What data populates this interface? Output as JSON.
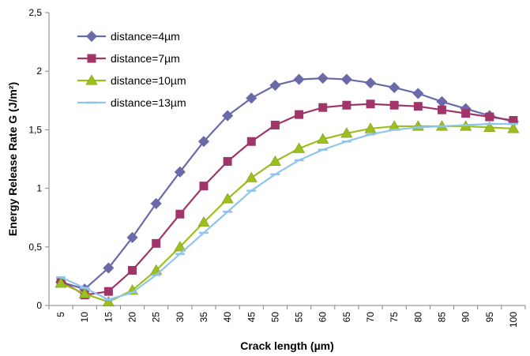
{
  "chart_data": {
    "type": "line",
    "title": "",
    "xlabel": "Crack length (µm)",
    "ylabel": "Energy Release Rate G (J/m²)",
    "x": [
      5,
      10,
      15,
      20,
      25,
      30,
      35,
      40,
      45,
      50,
      55,
      60,
      65,
      70,
      75,
      80,
      85,
      90,
      95,
      100
    ],
    "x_tick_labels": [
      "5",
      "10",
      "15",
      "20",
      "25",
      "30",
      "35",
      "40",
      "45",
      "50",
      "55",
      "60",
      "65",
      "70",
      "75",
      "80",
      "85",
      "90",
      "95",
      "100"
    ],
    "ylim": [
      0,
      2.5
    ],
    "y_ticks": [
      0,
      0.5,
      1,
      1.5,
      2,
      2.5
    ],
    "y_tick_labels": [
      "0",
      "0,5",
      "1",
      "1,5",
      "2",
      "2,5"
    ],
    "grid": false,
    "legend_position": "top-left",
    "series": [
      {
        "name": "distance=4µm",
        "marker": "diamond",
        "color": "#6A6AA8",
        "values": [
          0.2,
          0.14,
          0.32,
          0.58,
          0.87,
          1.14,
          1.4,
          1.62,
          1.77,
          1.88,
          1.93,
          1.94,
          1.93,
          1.9,
          1.86,
          1.81,
          1.74,
          1.68,
          1.62,
          1.57
        ]
      },
      {
        "name": "distance=7µm",
        "marker": "square",
        "color": "#A0356A",
        "values": [
          0.21,
          0.09,
          0.12,
          0.3,
          0.53,
          0.78,
          1.02,
          1.23,
          1.4,
          1.54,
          1.63,
          1.69,
          1.71,
          1.72,
          1.71,
          1.7,
          1.67,
          1.64,
          1.61,
          1.58
        ]
      },
      {
        "name": "distance=10µm",
        "marker": "triangle",
        "color": "#9CBF1E",
        "values": [
          0.19,
          0.1,
          0.03,
          0.13,
          0.3,
          0.5,
          0.71,
          0.91,
          1.09,
          1.23,
          1.34,
          1.42,
          1.47,
          1.51,
          1.53,
          1.53,
          1.53,
          1.53,
          1.52,
          1.51
        ]
      },
      {
        "name": "distance=13µm",
        "marker": "dash",
        "color": "#8FC5EA",
        "values": [
          0.24,
          0.15,
          0.05,
          0.11,
          0.26,
          0.44,
          0.62,
          0.8,
          0.98,
          1.12,
          1.24,
          1.33,
          1.4,
          1.46,
          1.5,
          1.52,
          1.53,
          1.54,
          1.55,
          1.55
        ]
      }
    ]
  }
}
